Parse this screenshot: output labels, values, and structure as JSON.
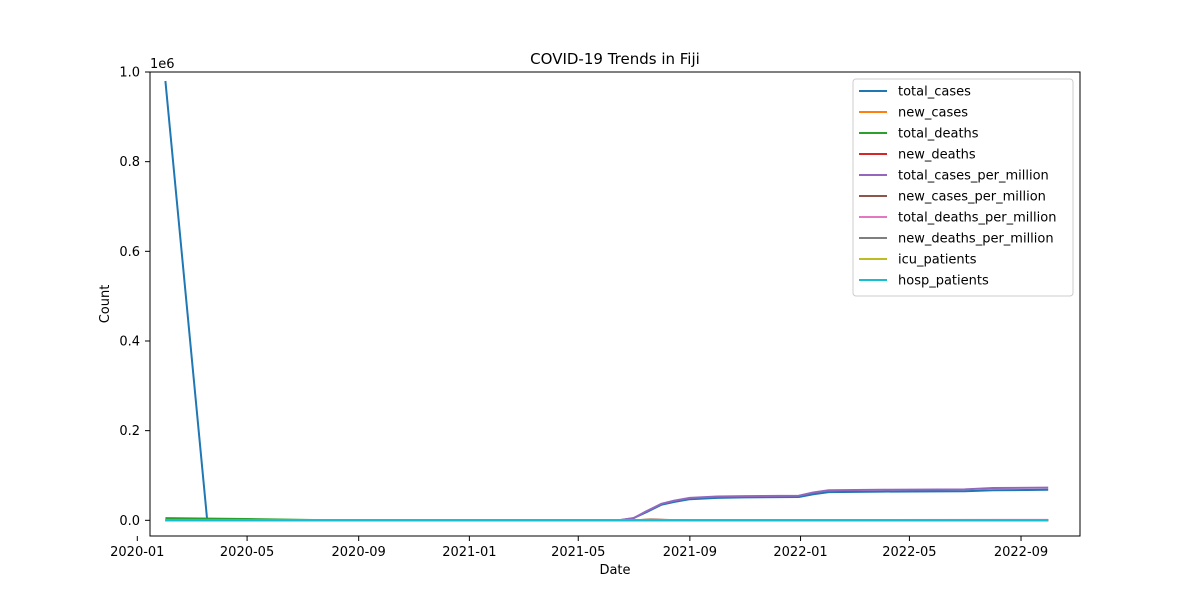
{
  "chart_data": {
    "type": "line",
    "title": "COVID-19 Trends in Fiji",
    "xlabel": "Date",
    "ylabel": "Count",
    "y_scale_label": "1e6",
    "xlim": [
      "2020-01-15",
      "2022-11-05"
    ],
    "ylim": [
      -0.035,
      1.0
    ],
    "x_ticks": [
      {
        "date": "2020-01-01",
        "label": "2020-01"
      },
      {
        "date": "2020-05-01",
        "label": "2020-05"
      },
      {
        "date": "2020-09-01",
        "label": "2020-09"
      },
      {
        "date": "2021-01-01",
        "label": "2021-01"
      },
      {
        "date": "2021-05-01",
        "label": "2021-05"
      },
      {
        "date": "2021-09-01",
        "label": "2021-09"
      },
      {
        "date": "2022-01-01",
        "label": "2022-01"
      },
      {
        "date": "2022-05-01",
        "label": "2022-05"
      },
      {
        "date": "2022-09-01",
        "label": "2022-09"
      }
    ],
    "y_ticks": [
      {
        "value": 0.0,
        "label": "0.0"
      },
      {
        "value": 0.2,
        "label": "0.2"
      },
      {
        "value": 0.4,
        "label": "0.4"
      },
      {
        "value": 0.6,
        "label": "0.6"
      },
      {
        "value": 0.8,
        "label": "0.8"
      },
      {
        "value": 1.0,
        "label": "1.0"
      }
    ],
    "grid": false,
    "legend_position": "top-right",
    "series": [
      {
        "name": "total_cases",
        "color": "#1f77b4",
        "points": [
          [
            "2020-02-01",
            0.98
          ],
          [
            "2020-03-18",
            0.0
          ],
          [
            "2020-09-01",
            0.0
          ],
          [
            "2021-06-15",
            0.0
          ],
          [
            "2021-07-01",
            0.005
          ],
          [
            "2021-07-15",
            0.018
          ],
          [
            "2021-08-01",
            0.035
          ],
          [
            "2021-08-15",
            0.041
          ],
          [
            "2021-09-01",
            0.047
          ],
          [
            "2021-10-01",
            0.05
          ],
          [
            "2021-11-01",
            0.051
          ],
          [
            "2021-12-30",
            0.052
          ],
          [
            "2022-01-15",
            0.058
          ],
          [
            "2022-02-01",
            0.063
          ],
          [
            "2022-04-01",
            0.064
          ],
          [
            "2022-07-01",
            0.065
          ],
          [
            "2022-08-01",
            0.067
          ],
          [
            "2022-10-01",
            0.068
          ]
        ]
      },
      {
        "name": "new_cases",
        "color": "#ff7f0e",
        "points": [
          [
            "2020-02-01",
            0.0
          ],
          [
            "2021-07-01",
            0.0
          ],
          [
            "2021-07-20",
            0.0015
          ],
          [
            "2021-08-10",
            0.0005
          ],
          [
            "2022-10-01",
            0.0
          ]
        ]
      },
      {
        "name": "total_deaths",
        "color": "#2ca02c",
        "points": [
          [
            "2020-02-01",
            0.005
          ],
          [
            "2020-05-01",
            0.003
          ],
          [
            "2020-08-01",
            0.0
          ],
          [
            "2022-10-01",
            0.0
          ]
        ]
      },
      {
        "name": "new_deaths",
        "color": "#d62728",
        "points": [
          [
            "2020-02-01",
            0.0
          ],
          [
            "2022-10-01",
            0.0
          ]
        ]
      },
      {
        "name": "total_cases_per_million",
        "color": "#9467bd",
        "points": [
          [
            "2020-02-01",
            0.0
          ],
          [
            "2021-06-15",
            0.0
          ],
          [
            "2021-07-01",
            0.005
          ],
          [
            "2021-07-15",
            0.02
          ],
          [
            "2021-08-01",
            0.037
          ],
          [
            "2021-08-15",
            0.044
          ],
          [
            "2021-09-01",
            0.05
          ],
          [
            "2021-10-01",
            0.053
          ],
          [
            "2021-11-01",
            0.054
          ],
          [
            "2021-12-30",
            0.055
          ],
          [
            "2022-01-15",
            0.062
          ],
          [
            "2022-02-01",
            0.067
          ],
          [
            "2022-04-01",
            0.068
          ],
          [
            "2022-07-01",
            0.069
          ],
          [
            "2022-08-01",
            0.072
          ],
          [
            "2022-10-01",
            0.073
          ]
        ]
      },
      {
        "name": "new_cases_per_million",
        "color": "#8c564b",
        "points": [
          [
            "2020-02-01",
            0.0
          ],
          [
            "2021-07-01",
            0.0
          ],
          [
            "2021-07-20",
            0.0018
          ],
          [
            "2021-08-10",
            0.0006
          ],
          [
            "2022-10-01",
            0.0
          ]
        ]
      },
      {
        "name": "total_deaths_per_million",
        "color": "#e377c2",
        "points": [
          [
            "2020-02-01",
            0.0
          ],
          [
            "2021-07-01",
            0.0
          ],
          [
            "2021-09-01",
            0.0007
          ],
          [
            "2022-10-01",
            0.0009
          ]
        ]
      },
      {
        "name": "new_deaths_per_million",
        "color": "#7f7f7f",
        "points": [
          [
            "2020-02-01",
            0.0
          ],
          [
            "2022-10-01",
            0.0
          ]
        ]
      },
      {
        "name": "icu_patients",
        "color": "#bcbd22",
        "points": [
          [
            "2020-02-01",
            0.0
          ],
          [
            "2022-10-01",
            0.0
          ]
        ]
      },
      {
        "name": "hosp_patients",
        "color": "#17becf",
        "points": [
          [
            "2020-02-01",
            0.0
          ],
          [
            "2022-10-01",
            0.0
          ]
        ]
      }
    ]
  }
}
